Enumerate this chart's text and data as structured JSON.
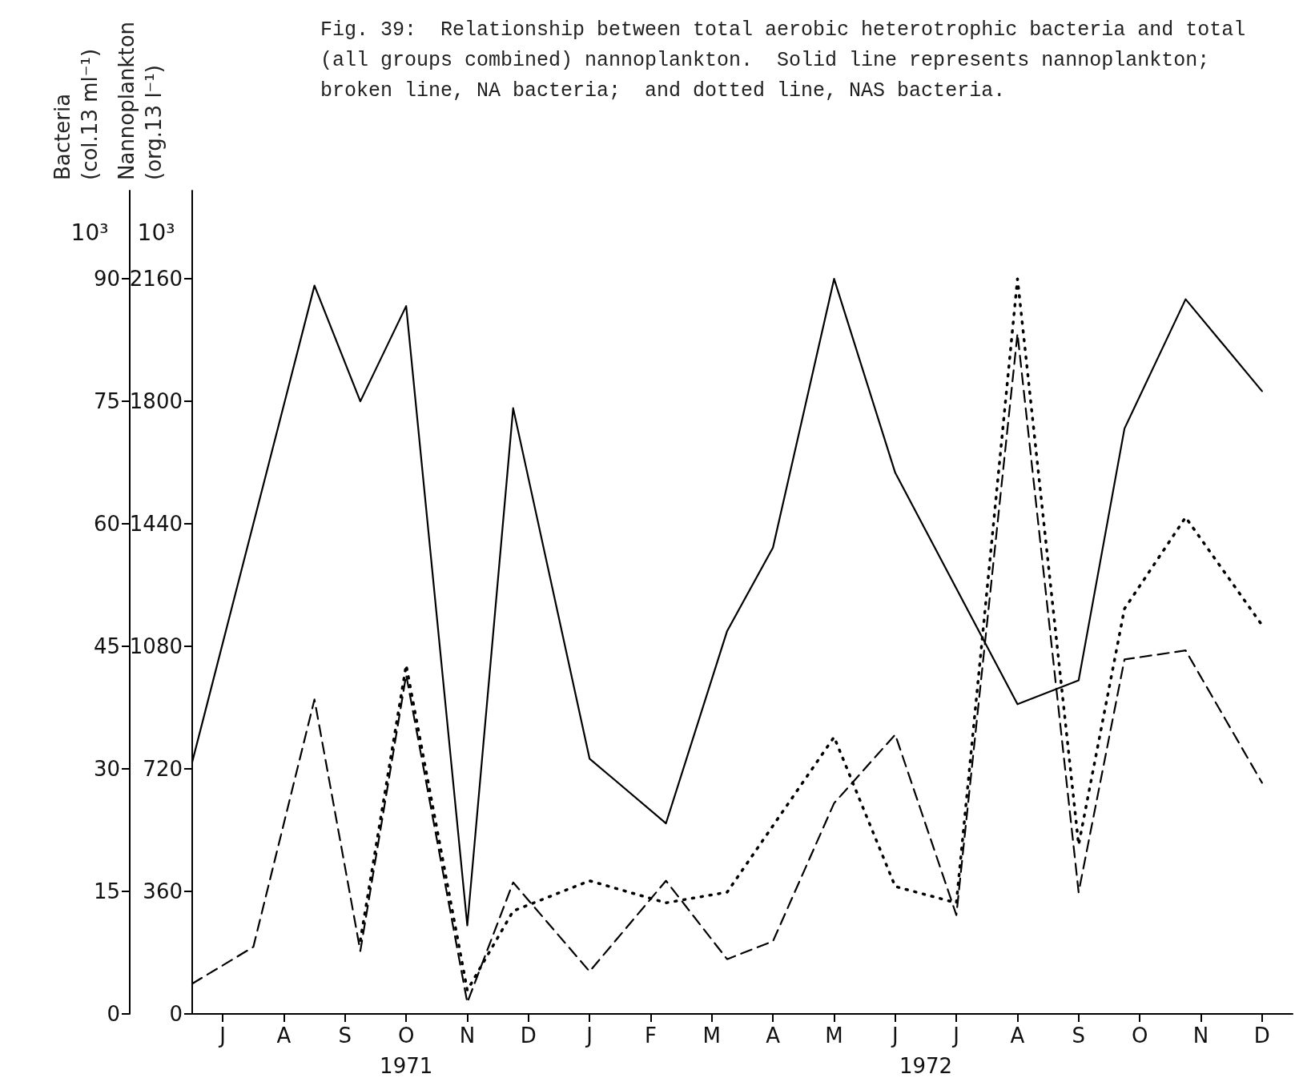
{
  "chart_data": {
    "type": "line",
    "title": "Fig. 39:  Relationship between total aerobic heterotrophic bacteria and total (all groups combined) nannoplankton.  Solid line represents nannoplankton;  broken line, NA bacteria;  and dotted line, NAS bacteria.",
    "ylabel": "Nannoplankton (org.13 l⁻¹) 10³",
    "y2label": "Bacteria (col.13 ml⁻¹) 10³",
    "annotations": [
      "1971",
      "1972"
    ],
    "categories": [
      null,
      null,
      "J",
      null,
      null,
      null,
      "A",
      null,
      null,
      null,
      "S",
      null,
      null,
      null,
      "O",
      null,
      null,
      null,
      "N",
      null,
      null,
      null,
      "D",
      null,
      null,
      null,
      "J",
      null,
      null,
      null,
      "F",
      null,
      null,
      null,
      "M",
      null,
      null,
      null,
      "A",
      null,
      null,
      null,
      "M",
      null,
      null,
      null,
      "J",
      null,
      null,
      null,
      "J",
      null,
      null,
      null,
      "A",
      null,
      null,
      null,
      "S",
      null,
      null,
      null,
      "O",
      null,
      null,
      null,
      "N",
      null,
      null,
      null,
      "D",
      null,
      null
    ],
    "ylim": [
      0,
      2419.2
    ],
    "yticks": [
      0,
      360,
      720,
      1080,
      1440,
      1800,
      2160
    ],
    "y2lim": [
      0,
      100.8
    ],
    "y2ticks": [
      0,
      15,
      30,
      45,
      60,
      75,
      90
    ],
    "grid": false,
    "marker": "none",
    "series": [
      {
        "color": "#000000",
        "line_style": "solid",
        "values": [
          740,
          null,
          null,
          null,
          null,
          null,
          null,
          null,
          2140,
          null,
          null,
          1800,
          null,
          null,
          2080,
          null,
          null,
          null,
          260,
          null,
          null,
          1780,
          null,
          null,
          null,
          null,
          750,
          null,
          null,
          null,
          null,
          560,
          null,
          null,
          null,
          1125,
          null,
          null,
          1370,
          null,
          null,
          null,
          2160,
          null,
          null,
          null,
          1590,
          null,
          null,
          null,
          null,
          null,
          null,
          null,
          910,
          null,
          null,
          null,
          980,
          null,
          null,
          1720,
          null,
          null,
          null,
          2100,
          null,
          null,
          null,
          null,
          1830,
          null,
          null
        ]
      },
      {
        "color": "#000000",
        "line_style": "dashed",
        "axis": "y2",
        "values": [
          3.7,
          null,
          null,
          null,
          8.2,
          null,
          null,
          null,
          38.5,
          null,
          null,
          7.7,
          null,
          null,
          41.5,
          null,
          null,
          null,
          1.4,
          null,
          null,
          16.1,
          null,
          null,
          null,
          null,
          5.2,
          null,
          null,
          null,
          null,
          16.3,
          null,
          null,
          null,
          6.7,
          null,
          null,
          8.9,
          null,
          null,
          null,
          25.8,
          null,
          null,
          null,
          34.2,
          null,
          null,
          null,
          12.1,
          null,
          null,
          null,
          83.3,
          null,
          null,
          null,
          14.9,
          null,
          null,
          43.4,
          null,
          null,
          null,
          44.5,
          null,
          null,
          null,
          null,
          28.3,
          null,
          null
        ]
      },
      {
        "color": "#000000",
        "line_style": "dotted",
        "axis": "y2",
        "values": [
          null,
          null,
          null,
          null,
          null,
          null,
          null,
          null,
          null,
          null,
          null,
          9.0,
          null,
          null,
          42.7,
          null,
          null,
          null,
          2.9,
          null,
          null,
          12.6,
          null,
          null,
          null,
          null,
          16.3,
          null,
          null,
          null,
          null,
          13.6,
          null,
          null,
          null,
          14.9,
          null,
          null,
          null,
          null,
          null,
          null,
          33.9,
          null,
          null,
          null,
          15.6,
          null,
          null,
          null,
          13.6,
          null,
          null,
          null,
          90.0,
          null,
          null,
          null,
          20.7,
          null,
          null,
          49.6,
          null,
          null,
          null,
          60.8,
          null,
          null,
          null,
          null,
          47.6,
          null,
          null
        ]
      }
    ]
  }
}
